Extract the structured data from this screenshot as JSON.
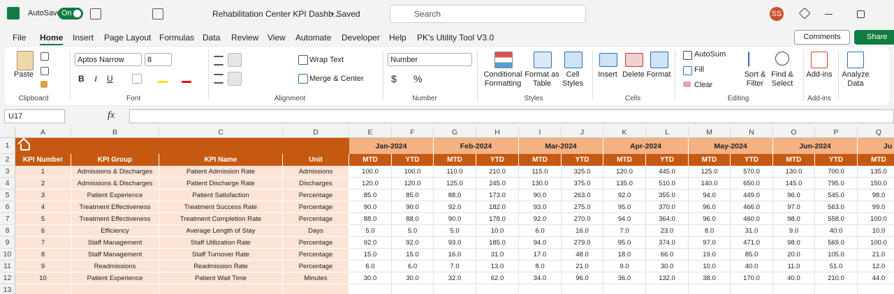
{
  "title_bar": {
    "autosave": "AutoSave",
    "toggle": "On",
    "file_name": "Rehabilitation Center KPI Dashb...",
    "status": "• Saved",
    "search": "Search",
    "avatar": "SS"
  },
  "menu": {
    "tabs": [
      "File",
      "Home",
      "Insert",
      "Page Layout",
      "Formulas",
      "Data",
      "Review",
      "View",
      "Automate",
      "Developer",
      "Help",
      "PK's Utility Tool V3.0"
    ],
    "comments": "Comments",
    "share": "Share"
  },
  "ribbon": {
    "clipboard": {
      "paste": "Paste",
      "label": "Clipboard"
    },
    "font": {
      "name": "Aptos Narrow",
      "size": "8",
      "bold": "B",
      "italic": "I",
      "underline": "U",
      "label": "Font"
    },
    "alignment": {
      "wrap": "Wrap Text",
      "merge": "Merge & Center",
      "label": "Alignment"
    },
    "number": {
      "format": "Number",
      "currency": "$",
      "percent": "%",
      "label": "Number"
    },
    "styles": {
      "conditional": [
        "Conditional",
        "Formatting"
      ],
      "table": [
        "Format as",
        "Table"
      ],
      "cell": [
        "Cell",
        "Styles"
      ],
      "label": "Styles"
    },
    "cells": {
      "insert": "Insert",
      "delete": "Delete",
      "format": "Format",
      "label": "Cells"
    },
    "editing": {
      "autosum": "AutoSum",
      "fill": "Fill",
      "clear": "Clear",
      "sort": [
        "Sort &",
        "Filter"
      ],
      "find": [
        "Find &",
        "Select"
      ],
      "label": "Editing"
    },
    "addins": {
      "button": "Add-ins",
      "label": "Add-ins"
    },
    "analyze": [
      "Analyze",
      "Data"
    ]
  },
  "formula_bar": {
    "name_box": "U17",
    "fx": "fx"
  },
  "sheet": {
    "columns": [
      "A",
      "B",
      "C",
      "D",
      "E",
      "F",
      "G",
      "H",
      "I",
      "J",
      "K",
      "L",
      "M",
      "N",
      "O",
      "P",
      "Q"
    ],
    "row_numbers": [
      "1",
      "2",
      "3",
      "4",
      "5",
      "6",
      "7",
      "8",
      "9",
      "10",
      "11",
      "12",
      "13"
    ],
    "months": [
      "Jan-2024",
      "Feb-2024",
      "Mar-2024",
      "Apr-2024",
      "May-2024",
      "Jun-2024",
      "Ju"
    ],
    "headers": [
      "KPI Number",
      "KPI Group",
      "KPI Name",
      "Unit",
      "MTD",
      "YTD",
      "MTD",
      "YTD",
      "MTD",
      "YTD",
      "MTD",
      "YTD",
      "MTD",
      "YTD",
      "MTD",
      "YTD",
      "MTD"
    ],
    "rows": [
      [
        "1",
        "Admissions & Discharges",
        "Patient Admission Rate",
        "Admissions",
        "100.0",
        "100.0",
        "110.0",
        "210.0",
        "115.0",
        "325.0",
        "120.0",
        "445.0",
        "125.0",
        "570.0",
        "130.0",
        "700.0",
        "135.0"
      ],
      [
        "2",
        "Admissions & Discharges",
        "Patient Discharge Rate",
        "Discharges",
        "120.0",
        "120.0",
        "125.0",
        "245.0",
        "130.0",
        "375.0",
        "135.0",
        "510.0",
        "140.0",
        "650.0",
        "145.0",
        "795.0",
        "150.0"
      ],
      [
        "3",
        "Patient Experience",
        "Patient Satisfaction",
        "Percentage",
        "85.0",
        "85.0",
        "88.0",
        "173.0",
        "90.0",
        "263.0",
        "92.0",
        "355.0",
        "94.0",
        "449.0",
        "96.0",
        "545.0",
        "98.0"
      ],
      [
        "4",
        "Treatment Effectiveness",
        "Treatment Success Rate",
        "Percentage",
        "90.0",
        "90.0",
        "92.0",
        "182.0",
        "93.0",
        "275.0",
        "95.0",
        "370.0",
        "96.0",
        "466.0",
        "97.0",
        "563.0",
        "99.0"
      ],
      [
        "5",
        "Treatment Effectiveness",
        "Treatment Completion Rate",
        "Percentage",
        "88.0",
        "88.0",
        "90.0",
        "178.0",
        "92.0",
        "270.0",
        "94.0",
        "364.0",
        "96.0",
        "460.0",
        "98.0",
        "558.0",
        "100.0"
      ],
      [
        "6",
        "Efficiency",
        "Average Length of Stay",
        "Days",
        "5.0",
        "5.0",
        "5.0",
        "10.0",
        "6.0",
        "16.0",
        "7.0",
        "23.0",
        "8.0",
        "31.0",
        "9.0",
        "40.0",
        "10.0"
      ],
      [
        "7",
        "Staff Management",
        "Staff Utilization Rate",
        "Percentage",
        "92.0",
        "92.0",
        "93.0",
        "185.0",
        "94.0",
        "279.0",
        "95.0",
        "374.0",
        "97.0",
        "471.0",
        "98.0",
        "569.0",
        "100.0"
      ],
      [
        "8",
        "Staff Management",
        "Staff Turnover Rate",
        "Percentage",
        "15.0",
        "15.0",
        "16.0",
        "31.0",
        "17.0",
        "48.0",
        "18.0",
        "66.0",
        "19.0",
        "85.0",
        "20.0",
        "105.0",
        "21.0"
      ],
      [
        "9",
        "Readmissions",
        "Readmission Rate",
        "Percentage",
        "6.0",
        "6.0",
        "7.0",
        "13.0",
        "8.0",
        "21.0",
        "9.0",
        "30.0",
        "10.0",
        "40.0",
        "11.0",
        "51.0",
        "12.0"
      ],
      [
        "10",
        "Patient Experience",
        "Patient Wait Time",
        "Minutes",
        "30.0",
        "30.0",
        "32.0",
        "62.0",
        "34.0",
        "96.0",
        "36.0",
        "132.0",
        "38.0",
        "170.0",
        "40.0",
        "210.0",
        "44.0"
      ]
    ]
  }
}
